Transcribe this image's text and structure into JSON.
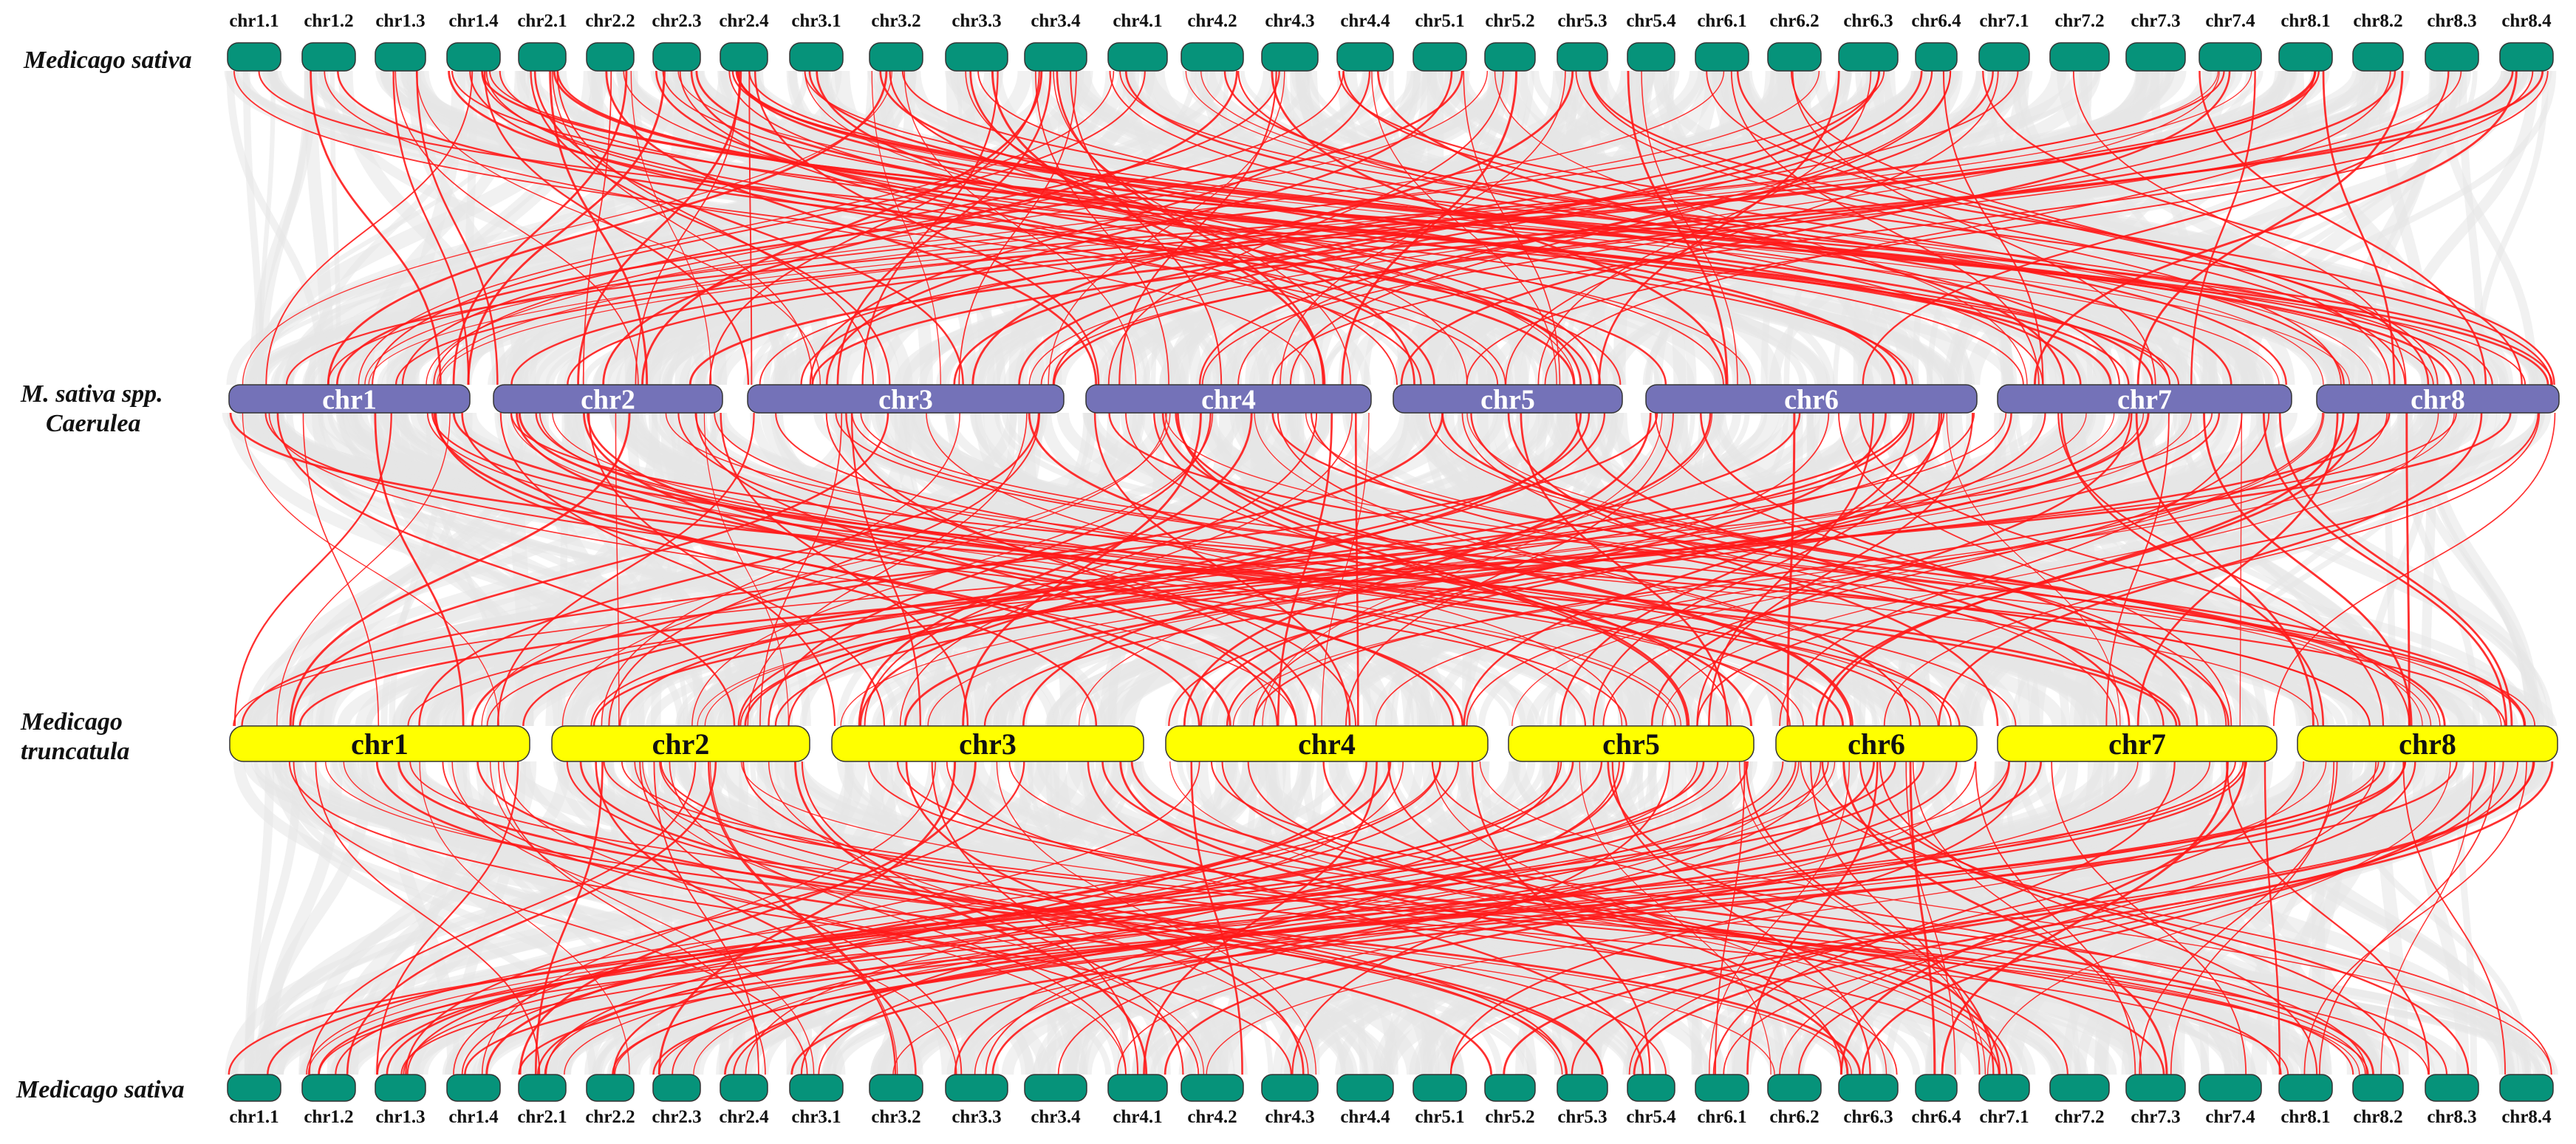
{
  "species_labels": {
    "row1": "Medicago sativa",
    "row2_line1": "M. sativa spp.",
    "row2_line2": "Caerulea",
    "row3_line1": "Medicago",
    "row3_line2": "truncatula",
    "row4": "Medicago sativa"
  },
  "tracks": {
    "row1": {
      "color": "#06937a",
      "labels": [
        "chr1.1",
        "chr1.2",
        "chr1.3",
        "chr1.4",
        "chr2.1",
        "chr2.2",
        "chr2.3",
        "chr2.4",
        "chr3.1",
        "chr3.2",
        "chr3.3",
        "chr3.4",
        "chr4.1",
        "chr4.2",
        "chr4.3",
        "chr4.4",
        "chr5.1",
        "chr5.2",
        "chr5.3",
        "chr5.4",
        "chr6.1",
        "chr6.2",
        "chr6.3",
        "chr6.4",
        "chr7.1",
        "chr7.2",
        "chr7.3",
        "chr7.4",
        "chr8.1",
        "chr8.2",
        "chr8.3",
        "chr8.4"
      ]
    },
    "row2": {
      "color": "#7472b8",
      "labels": [
        "chr1",
        "chr2",
        "chr3",
        "chr4",
        "chr5",
        "chr6",
        "chr7",
        "chr8"
      ]
    },
    "row3": {
      "color": "#ffff00",
      "labels": [
        "chr1",
        "chr2",
        "chr3",
        "chr4",
        "chr5",
        "chr6",
        "chr7",
        "chr8"
      ]
    },
    "row4": {
      "color": "#06937a",
      "labels": [
        "chr1.1",
        "chr1.2",
        "chr1.3",
        "chr1.4",
        "chr2.1",
        "chr2.2",
        "chr2.3",
        "chr2.4",
        "chr3.1",
        "chr3.2",
        "chr3.3",
        "chr3.4",
        "chr4.1",
        "chr4.2",
        "chr4.3",
        "chr4.4",
        "chr5.1",
        "chr5.2",
        "chr5.3",
        "chr5.4",
        "chr6.1",
        "chr6.2",
        "chr6.3",
        "chr6.4",
        "chr7.1",
        "chr7.2",
        "chr7.3",
        "chr7.4",
        "chr8.1",
        "chr8.2",
        "chr8.3",
        "chr8.4"
      ]
    }
  },
  "link_colors": {
    "highlight": "#ff1a1a",
    "background": "#e6e6e6"
  }
}
